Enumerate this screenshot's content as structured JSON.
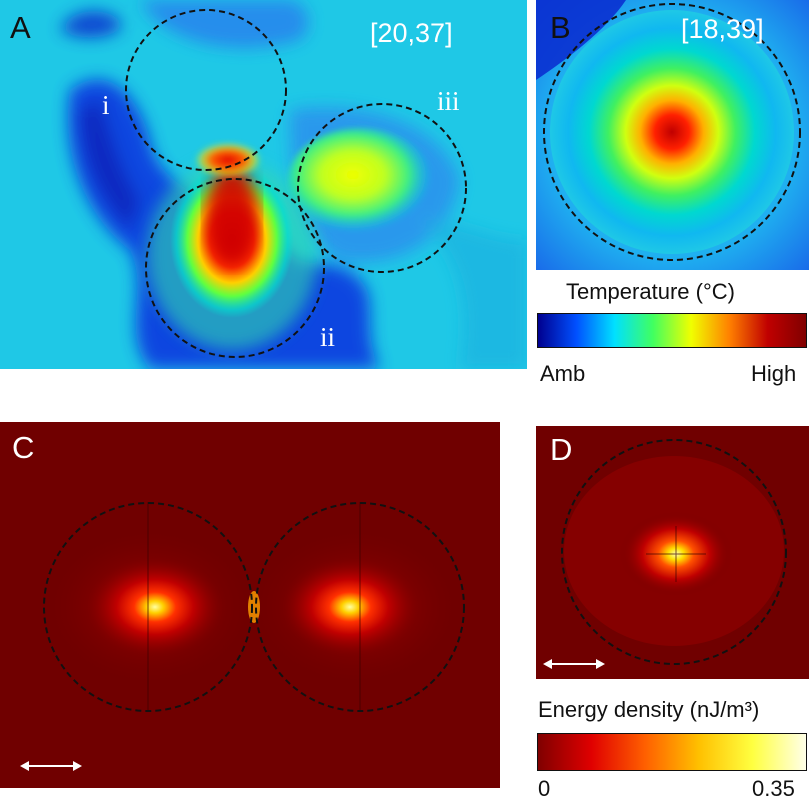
{
  "panel_a": {
    "letter": "A",
    "bracket": "[20,37]",
    "labels": [
      "i",
      "ii",
      "iii"
    ]
  },
  "panel_b": {
    "letter": "B",
    "bracket": "[18,39]"
  },
  "temperature_colorbar": {
    "title": "Temperature (°C)",
    "min_label": "Amb",
    "max_label": "High",
    "colors": [
      "#00008f",
      "#0050ff",
      "#00e0ff",
      "#40ff60",
      "#f0ff00",
      "#ff8000",
      "#c00000",
      "#800000"
    ]
  },
  "panel_c": {
    "letter": "C"
  },
  "panel_d": {
    "letter": "D"
  },
  "energy_colorbar": {
    "title": "Energy density (nJ/m³)",
    "min_label": "0",
    "max_label": "0.35",
    "colors": [
      "#800000",
      "#e00000",
      "#ff6000",
      "#ffc000",
      "#ffff40",
      "#ffffe8"
    ]
  }
}
